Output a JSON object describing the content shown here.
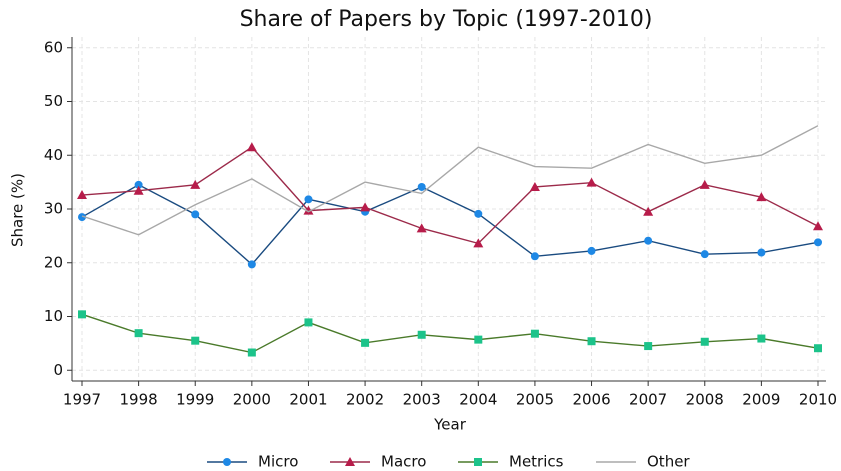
{
  "chart_data": {
    "type": "line",
    "title": "Share of Papers by Topic (1997-2010)",
    "x_label": "Year",
    "y_label": "Share (%)",
    "x": [
      1997,
      1998,
      1999,
      2000,
      2001,
      2002,
      2003,
      2004,
      2005,
      2006,
      2007,
      2008,
      2009,
      2010
    ],
    "xlim": [
      1997,
      2010
    ],
    "xticks": [
      1997,
      1998,
      1999,
      2000,
      2001,
      2002,
      2003,
      2004,
      2005,
      2006,
      2007,
      2008,
      2009,
      2010
    ],
    "ylim": [
      -2,
      62
    ],
    "yticks": [
      0,
      10,
      20,
      30,
      40,
      50,
      60
    ],
    "grid": true,
    "legend": "bottom",
    "series": [
      {
        "name": "Micro",
        "color": "#1a4b80",
        "marker_color": "#1e88e5",
        "marker": "circle",
        "values": [
          28.5,
          34.5,
          29.0,
          19.7,
          31.8,
          29.5,
          34.1,
          29.1,
          21.2,
          22.2,
          24.1,
          21.6,
          21.9,
          23.8
        ]
      },
      {
        "name": "Macro",
        "color": "#9c2a4a",
        "marker_color": "#b71c4a",
        "marker": "triangle",
        "values": [
          32.6,
          33.4,
          34.5,
          41.5,
          29.7,
          30.3,
          26.4,
          23.6,
          34.1,
          34.9,
          29.5,
          34.5,
          32.2,
          26.8
        ]
      },
      {
        "name": "Metrics",
        "color": "#4a7a2a",
        "marker_color": "#1cc38a",
        "marker": "square",
        "values": [
          10.4,
          6.9,
          5.5,
          3.3,
          8.9,
          5.1,
          6.6,
          5.7,
          6.8,
          5.4,
          4.5,
          5.3,
          5.9,
          4.1
        ]
      },
      {
        "name": "Other",
        "color": "#a8a8a8",
        "marker_color": "#a8a8a8",
        "marker": "none",
        "values": [
          28.7,
          25.2,
          30.8,
          35.6,
          29.5,
          35.0,
          32.9,
          41.5,
          37.9,
          37.6,
          42.0,
          38.5,
          40.0,
          45.5
        ]
      }
    ]
  }
}
